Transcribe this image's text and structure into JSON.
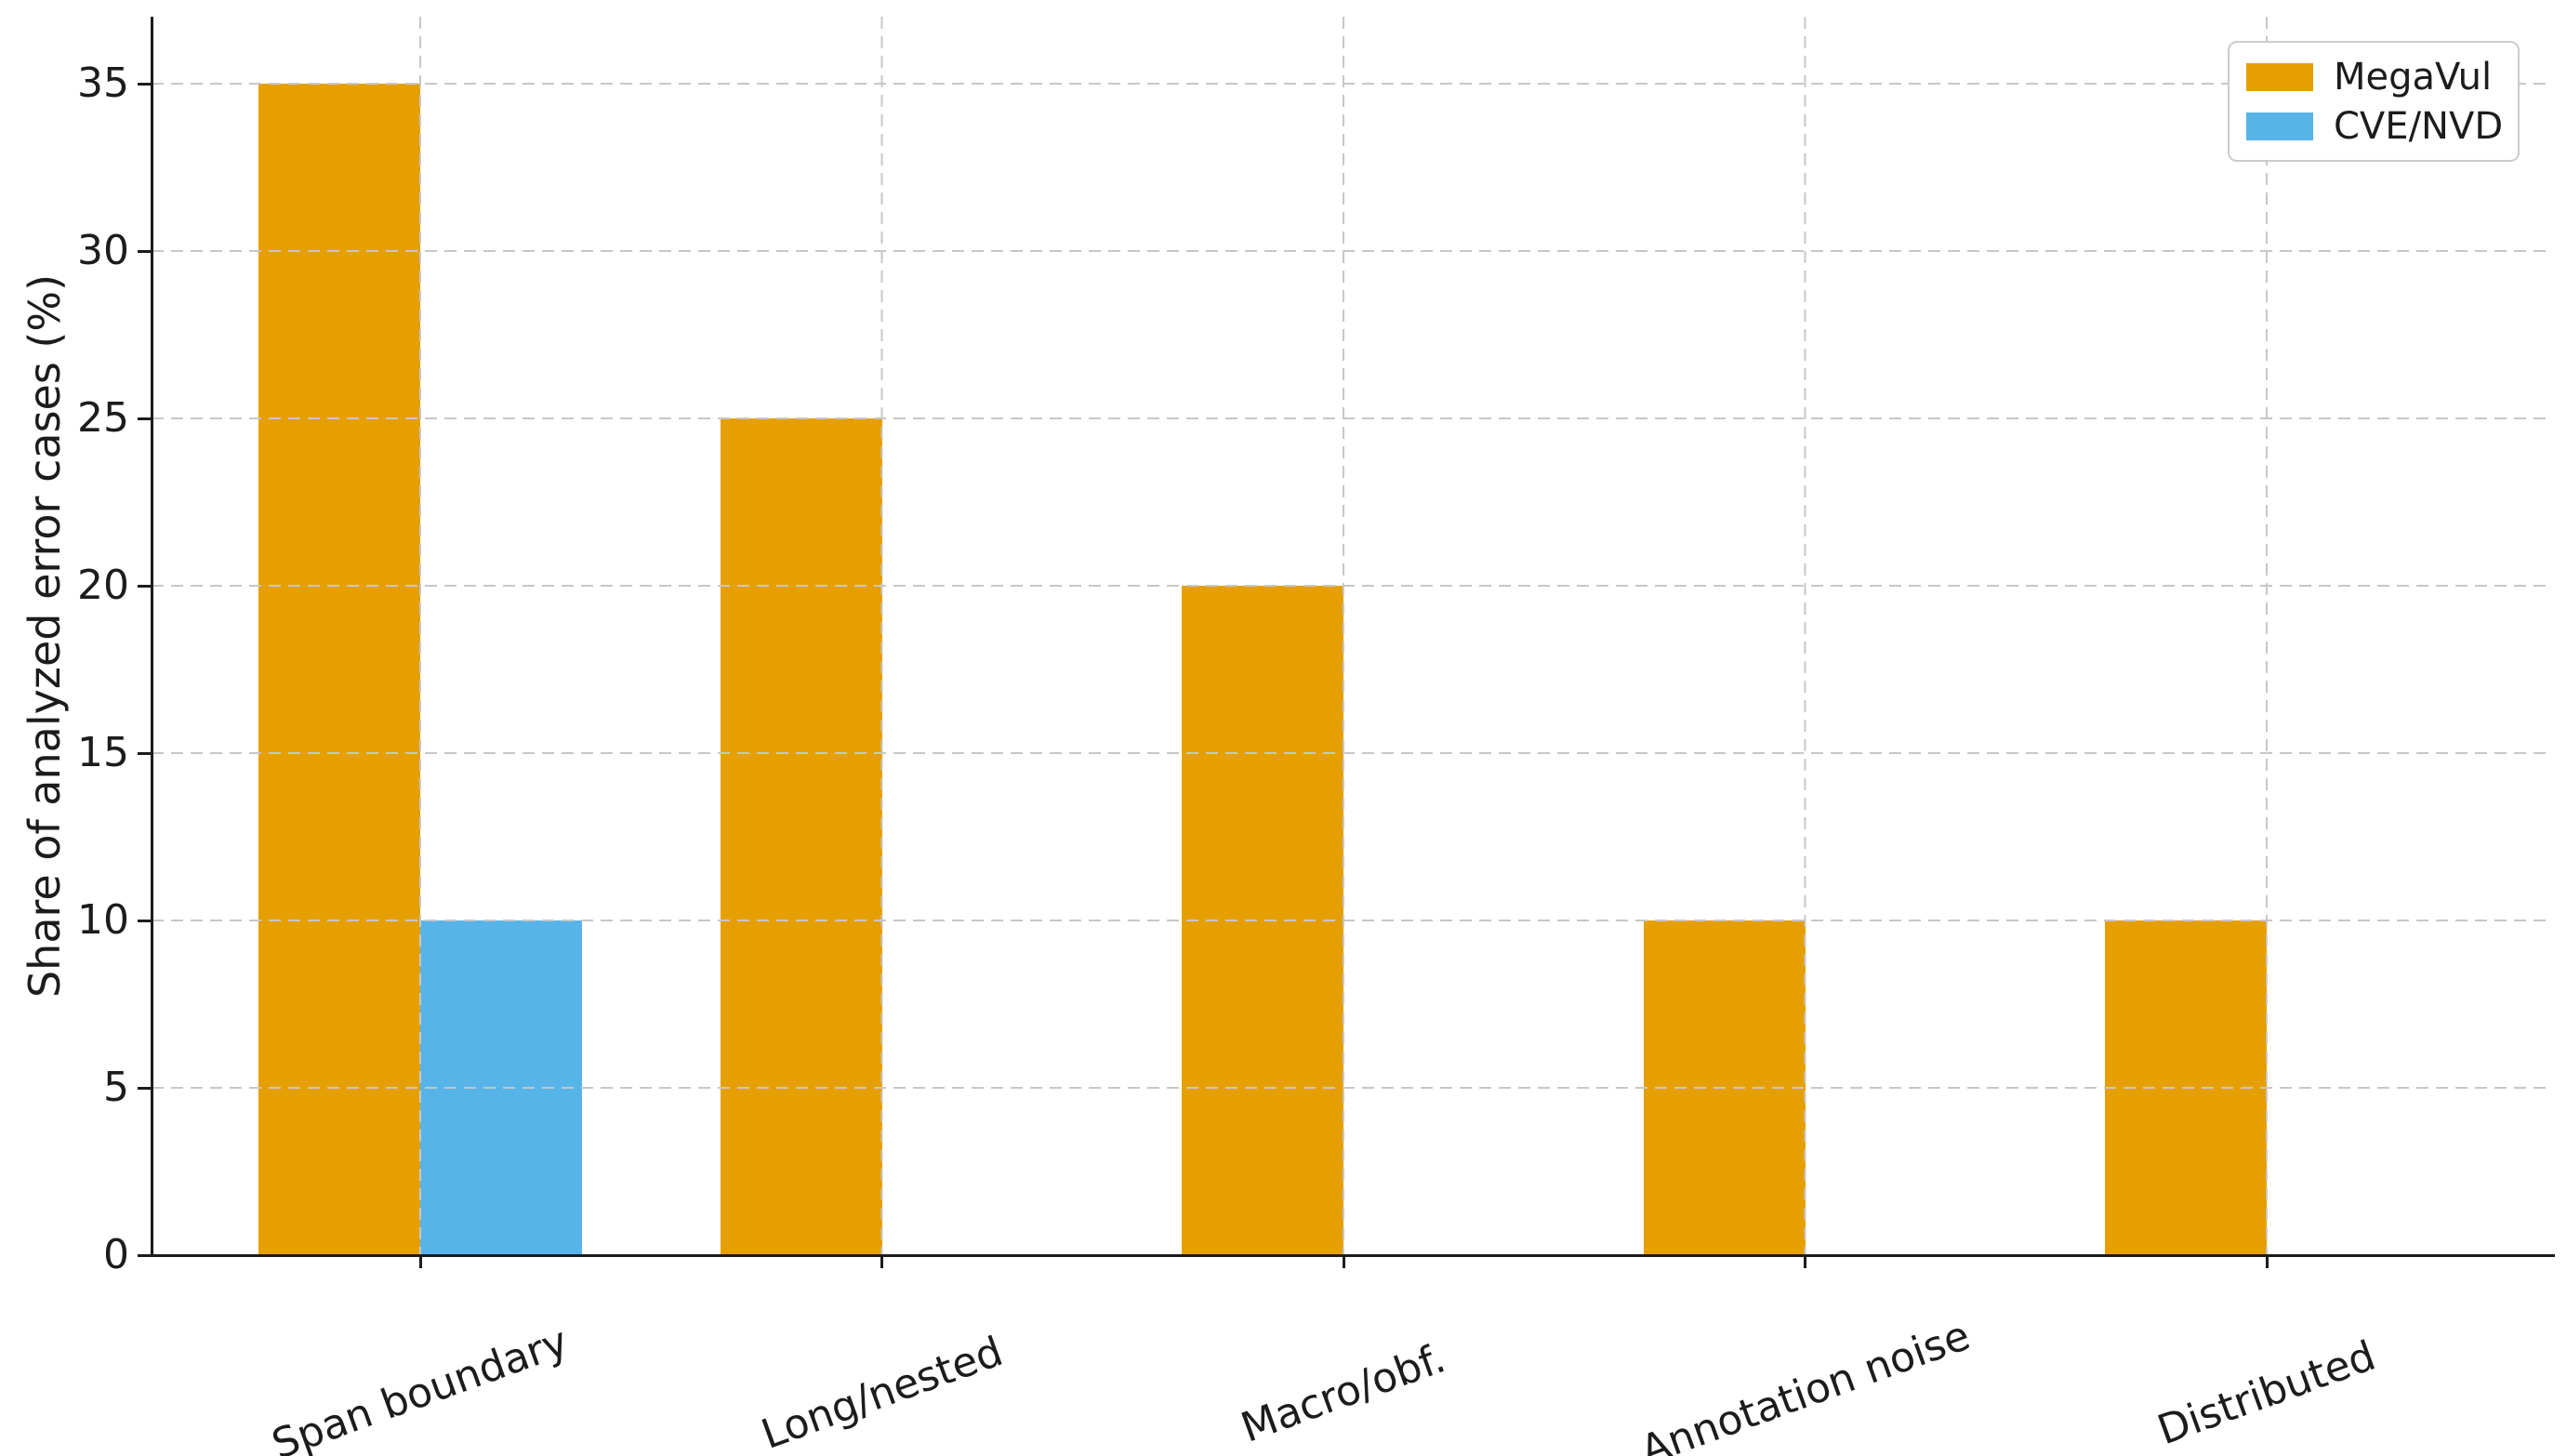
{
  "chart_data": {
    "type": "bar",
    "title": "",
    "xlabel": "",
    "ylabel": "Share of analyzed error cases (%)",
    "categories": [
      "Span boundary",
      "Long/nested",
      "Macro/obf.",
      "Annotation noise",
      "Distributed"
    ],
    "series": [
      {
        "name": "MegaVul",
        "color": "#E69F00",
        "values": [
          35,
          25,
          20,
          10,
          10
        ]
      },
      {
        "name": "CVE/NVD",
        "color": "#56B4E9",
        "values": [
          10,
          null,
          null,
          null,
          null
        ]
      }
    ],
    "ylim": [
      0,
      37
    ],
    "yticks": [
      0,
      5,
      10,
      15,
      20,
      25,
      30,
      35
    ],
    "grid": true,
    "grid_style": "dashed",
    "grid_above_bars": true,
    "legend_position": "upper right",
    "x_tick_rotation_deg": 20,
    "colors": {
      "axis": "#1c1c1c",
      "text": "#1c1c1c",
      "grid": "#c7c7c7",
      "legend_border": "#cccccc",
      "background": "#ffffff"
    }
  }
}
